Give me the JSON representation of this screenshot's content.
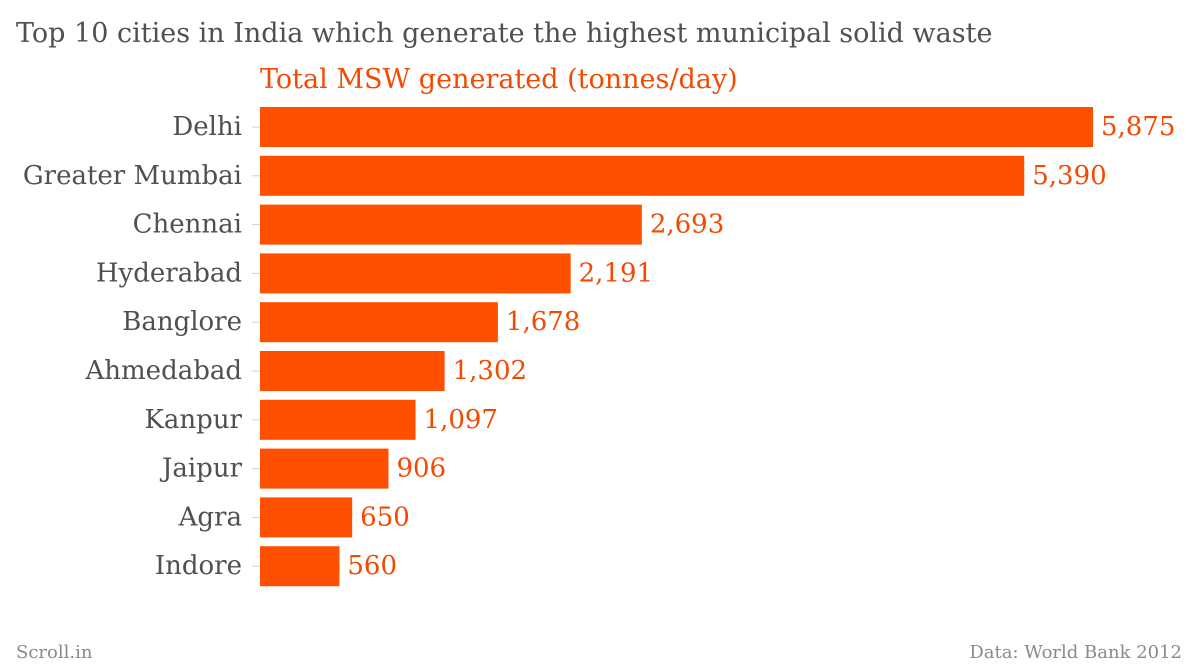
{
  "title": "Top 10 cities in India which generate the highest municipal solid waste",
  "footer": {
    "source_left": "Scroll.in",
    "source_right": "Data: World Bank 2012"
  },
  "colors": {
    "bar": "#ff5000",
    "value_text": "#f44a00",
    "label_text": "#505050",
    "footer_text": "#8a8a8a"
  },
  "chart_data": {
    "type": "bar",
    "orientation": "horizontal",
    "title": "Top 10 cities in India which generate the highest municipal solid waste",
    "series": [
      {
        "name": "Total MSW generated (tonnes/day)",
        "values": [
          5875,
          5390,
          2693,
          2191,
          1678,
          1302,
          1097,
          906,
          650,
          560
        ]
      }
    ],
    "categories": [
      "Delhi",
      "Greater Mumbai",
      "Chennai",
      "Hyderabad",
      "Banglore",
      "Ahmedabad",
      "Kanpur",
      "Jaipur",
      "Agra",
      "Indore"
    ],
    "value_labels": [
      "5,875",
      "5,390",
      "2,693",
      "2,191",
      "1,678",
      "1,302",
      "1,097",
      "906",
      "650",
      "560"
    ],
    "xlim": [
      0,
      6000
    ],
    "grid": false,
    "legend": "none"
  }
}
